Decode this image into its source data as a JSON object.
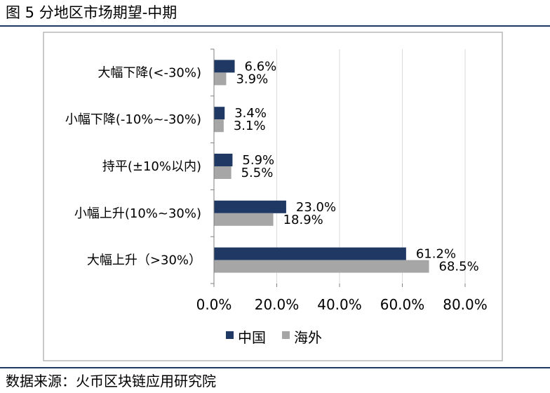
{
  "figure": {
    "title": "图 5 分地区市场期望-中期",
    "source": "数据来源：火币区块链应用研究院"
  },
  "chart_data": {
    "type": "bar",
    "orientation": "horizontal",
    "categories": [
      "大幅下降(<-30%)",
      "小幅下降(-10%~-30%)",
      "持平(±10%以内)",
      "小幅上升(10%~30%)",
      "大幅上升（>30%）"
    ],
    "series": [
      {
        "name": "中国",
        "color": "#1f3864",
        "values": [
          6.6,
          3.4,
          5.9,
          23.0,
          61.2
        ],
        "labels": [
          "6.6%",
          "3.4%",
          "5.9%",
          "23.0%",
          "61.2%"
        ]
      },
      {
        "name": "海外",
        "color": "#a6a6a6",
        "values": [
          3.9,
          3.1,
          5.5,
          18.9,
          68.5
        ],
        "labels": [
          "3.9%",
          "3.1%",
          "5.5%",
          "18.9%",
          "68.5%"
        ]
      }
    ],
    "xlim": [
      0,
      80
    ],
    "xticks": [
      0,
      20,
      40,
      60,
      80
    ],
    "xtick_labels": [
      "0.0%",
      "20.0%",
      "40.0%",
      "60.0%",
      "80.0%"
    ],
    "grid": true,
    "legend": "bottom-center"
  }
}
